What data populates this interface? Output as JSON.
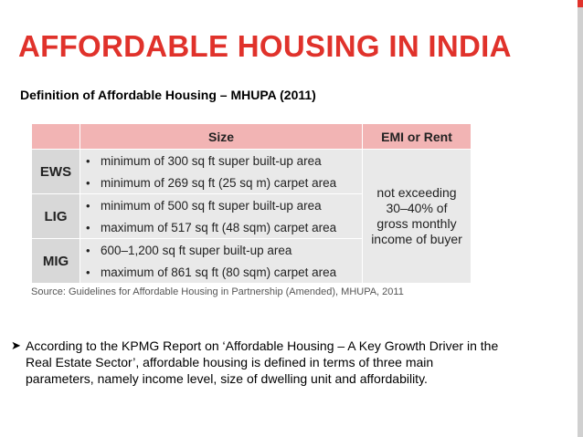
{
  "slide": {
    "title": "AFFORDABLE HOUSING IN INDIA",
    "subtitle": "Definition of Affordable Housing – MHUPA (2011)"
  },
  "table": {
    "headers": {
      "size": "Size",
      "emi": "EMI or Rent"
    },
    "rows": [
      {
        "category": "EWS",
        "items": [
          "minimum of 300 sq ft super built-up area",
          "minimum of 269 sq ft (25 sq m) carpet area"
        ]
      },
      {
        "category": "LIG",
        "items": [
          "minimum of 500 sq ft super built-up area",
          "maximum of 517 sq ft (48 sqm) carpet area"
        ]
      },
      {
        "category": "MIG",
        "items": [
          "600–1,200 sq ft super built-up area",
          "maximum of 861 sq ft (80 sqm) carpet area"
        ]
      }
    ],
    "emi_lines": [
      "not exceeding",
      "30–40% of",
      "gross monthly",
      "income of buyer"
    ],
    "source": "Source: Guidelines for Affordable Housing in Partnership (Amended), MHUPA, 2011"
  },
  "bullet": {
    "lines": [
      "According to the KPMG Report on ‘Affordable Housing – A Key Growth Driver in the",
      "Real Estate Sector’, affordable housing is defined in terms of three main",
      "parameters, namely income level, size of dwelling unit and affordability."
    ]
  },
  "colors": {
    "accent": "#e0322b",
    "header_bg": "#f2b4b4",
    "cell_bg": "#e9e9e9",
    "category_bg": "#d8d8d8"
  }
}
